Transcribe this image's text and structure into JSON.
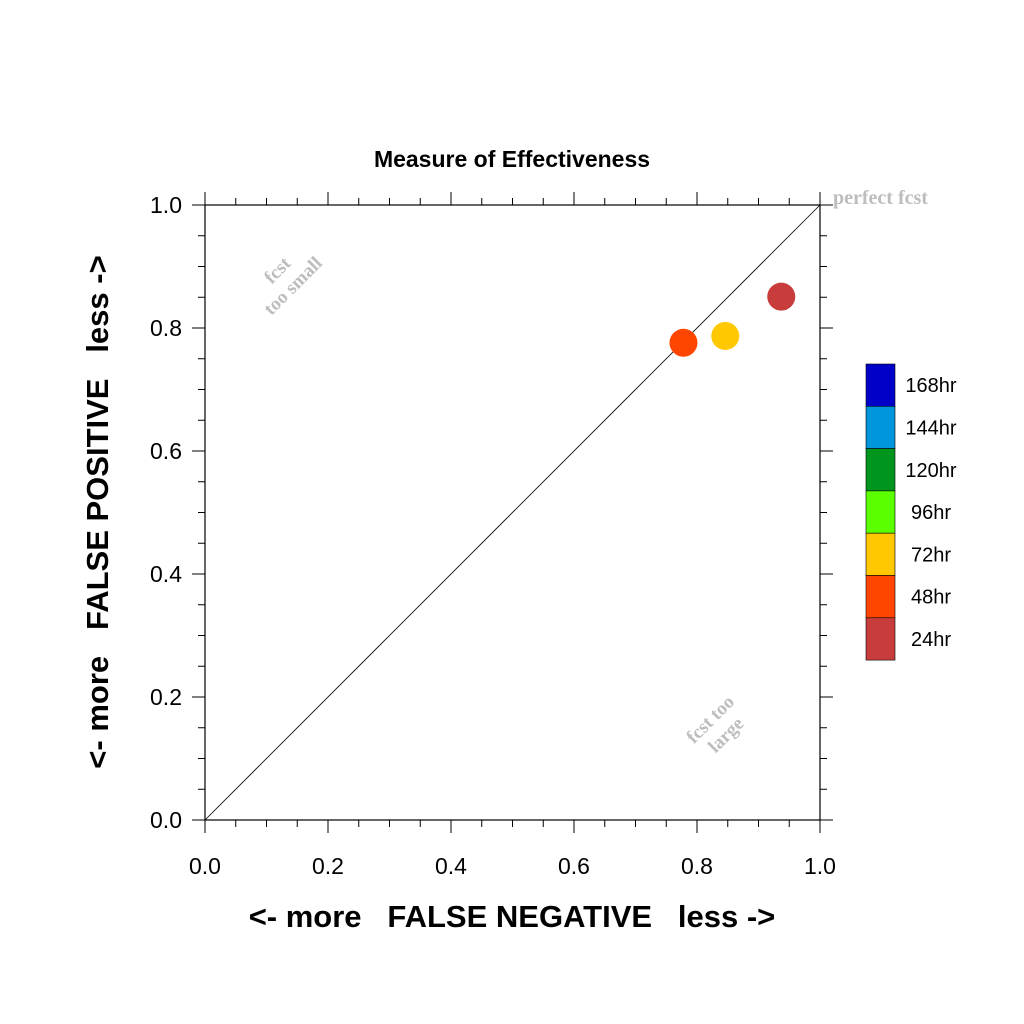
{
  "chart_data": {
    "type": "scatter",
    "title": "Measure of Effectiveness",
    "xlabel": "<- more   FALSE NEGATIVE   less ->",
    "ylabel": "<- more   FALSE POSITIVE   less ->",
    "xlim": [
      0.0,
      1.0
    ],
    "ylim": [
      0.0,
      1.0
    ],
    "x_ticks": [
      0.0,
      0.2,
      0.4,
      0.6,
      0.8,
      1.0
    ],
    "y_ticks": [
      0.0,
      0.2,
      0.4,
      0.6,
      0.8,
      1.0
    ],
    "x_tick_labels": [
      "0.0",
      "0.2",
      "0.4",
      "0.6",
      "0.8",
      "1.0"
    ],
    "y_tick_labels": [
      "0.0",
      "0.2",
      "0.4",
      "0.6",
      "0.8",
      "1.0"
    ],
    "grid": false,
    "reference_line": {
      "from": [
        0.0,
        0.0
      ],
      "to": [
        1.0,
        1.0
      ]
    },
    "annotations": {
      "perfect": "perfect fcst",
      "too_small": [
        "fcst",
        "too small"
      ],
      "too_large": [
        "fcst too",
        "large"
      ]
    },
    "annotation_color": "#bdbdbd",
    "legend": {
      "placement": "right",
      "entries": [
        {
          "label": "168hr",
          "color": "#0000c8"
        },
        {
          "label": "144hr",
          "color": "#0096dc"
        },
        {
          "label": "120hr",
          "color": "#00961e"
        },
        {
          "label": "96hr",
          "color": "#5aff00"
        },
        {
          "label": "72hr",
          "color": "#ffc800"
        },
        {
          "label": "48hr",
          "color": "#ff4600"
        },
        {
          "label": "24hr",
          "color": "#c83c3c"
        }
      ]
    },
    "points": [
      {
        "lead": "24hr",
        "x": 0.937,
        "y": 0.851,
        "color": "#c83c3c"
      },
      {
        "lead": "48hr",
        "x": 0.778,
        "y": 0.776,
        "color": "#ff4600"
      },
      {
        "lead": "72hr",
        "x": 0.846,
        "y": 0.787,
        "color": "#ffc800"
      }
    ]
  }
}
